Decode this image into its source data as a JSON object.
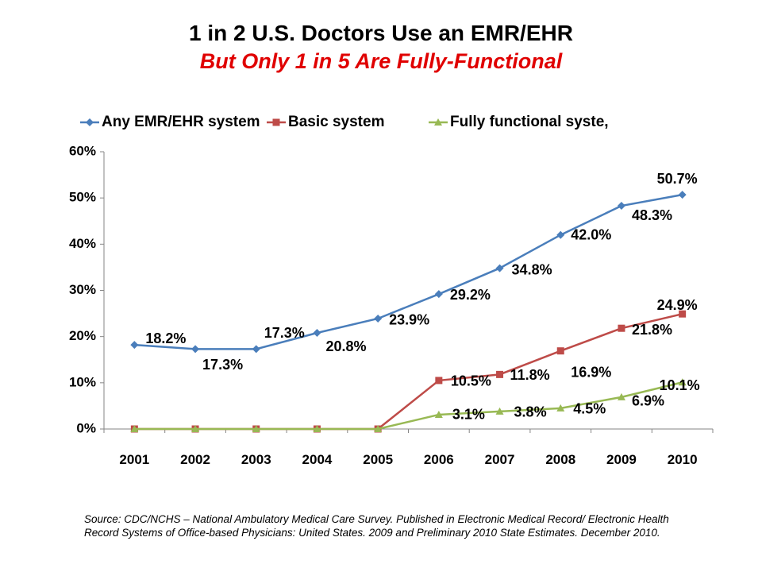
{
  "title": "1 in 2 U.S. Doctors Use an EMR/EHR",
  "subtitle": "But Only 1 in 5 Are Fully-Functional",
  "source": "Source: CDC/NCHS – National Ambulatory Medical Care Survey. Published in Electronic Medical Record/ Electronic Health Record Systems of Office-based Physicians: United States. 2009 and Preliminary 2010 State Estimates. December 2010.",
  "chart_data": {
    "type": "line",
    "title": "1 in 2 U.S. Doctors Use an EMR/EHR",
    "xlabel": "",
    "ylabel": "",
    "ylim": [
      0,
      60
    ],
    "yticks": [
      "0%",
      "10%",
      "20%",
      "30%",
      "40%",
      "50%",
      "60%"
    ],
    "categories": [
      "2001",
      "2002",
      "2003",
      "2004",
      "2005",
      "2006",
      "2007",
      "2008",
      "2009",
      "2010"
    ],
    "legend_position": "top",
    "grid": false,
    "series": [
      {
        "name": "Any EMR/EHR system",
        "color": "#4a7ebb",
        "marker": "diamond",
        "values": [
          18.2,
          17.3,
          17.3,
          20.8,
          23.9,
          29.2,
          34.8,
          42.0,
          48.3,
          50.7
        ],
        "labels": [
          "18.2%",
          "17.3%",
          "17.3%",
          "20.8%",
          "23.9%",
          "29.2%",
          "34.8%",
          "42.0%",
          "48.3%",
          "50.7%"
        ]
      },
      {
        "name": "Basic system",
        "color": "#be4b48",
        "marker": "square",
        "values": [
          0,
          0,
          0,
          0,
          0,
          10.5,
          11.8,
          16.9,
          21.8,
          24.9
        ],
        "labels": [
          "",
          "",
          "",
          "",
          "",
          "10.5%",
          "11.8%",
          "16.9%",
          "21.8%",
          "24.9%"
        ]
      },
      {
        "name": "Fully functional syste,",
        "color": "#98b954",
        "marker": "triangle",
        "values": [
          0,
          0,
          0,
          0,
          0,
          3.1,
          3.8,
          4.5,
          6.9,
          10.1
        ],
        "labels": [
          "",
          "",
          "",
          "",
          "",
          "3.1%",
          "3.8%",
          "4.5%",
          "6.9%",
          "10.1%"
        ]
      }
    ]
  }
}
